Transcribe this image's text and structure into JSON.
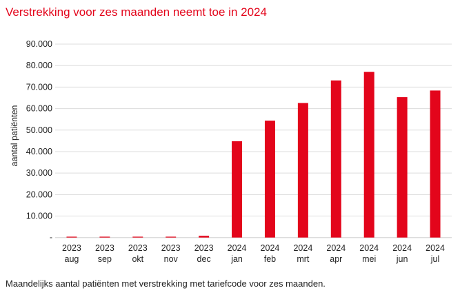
{
  "chart_data": {
    "type": "bar",
    "title": "Verstrekking voor zes maanden neemt toe in 2024",
    "caption": "Maandelijks aantal patiënten met verstrekking met tariefcode voor zes maanden.",
    "xlabel": "",
    "ylabel": "aantal patiënten",
    "ylim": [
      0,
      90000
    ],
    "yticks": [
      "-",
      "10.000",
      "20.000",
      "30.000",
      "40.000",
      "50.000",
      "60.000",
      "70.000",
      "80.000",
      "90.000"
    ],
    "categories": [
      {
        "year": "2023",
        "month": "aug"
      },
      {
        "year": "2023",
        "month": "sep"
      },
      {
        "year": "2023",
        "month": "okt"
      },
      {
        "year": "2023",
        "month": "nov"
      },
      {
        "year": "2023",
        "month": "dec"
      },
      {
        "year": "2024",
        "month": "jan"
      },
      {
        "year": "2024",
        "month": "feb"
      },
      {
        "year": "2024",
        "month": "mrt"
      },
      {
        "year": "2024",
        "month": "apr"
      },
      {
        "year": "2024",
        "month": "mei"
      },
      {
        "year": "2024",
        "month": "jun"
      },
      {
        "year": "2024",
        "month": "jul"
      }
    ],
    "values": [
      400,
      400,
      400,
      400,
      800,
      44800,
      54400,
      62600,
      73100,
      77100,
      65300,
      68400
    ],
    "grid": true,
    "colors": {
      "bar": "#e3051b",
      "grid": "#dcdcdc",
      "title": "#e3051b"
    }
  }
}
